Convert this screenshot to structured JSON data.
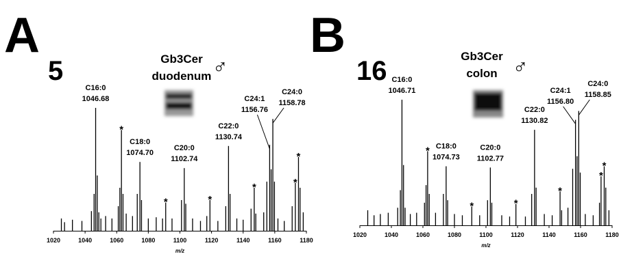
{
  "chart_data": [
    {
      "type": "spectrum",
      "panel": "A",
      "sample": "5",
      "title_lines": [
        "Gb3Cer",
        "duodenum"
      ],
      "symbol": "♂",
      "x_label": "m/z",
      "xlim": [
        1020,
        1180
      ],
      "xticks": [
        1020,
        1040,
        1060,
        1080,
        1100,
        1120,
        1140,
        1160,
        1180
      ],
      "ylim": [
        0,
        100
      ],
      "color": "#000000",
      "x": [
        1025,
        1027,
        1032,
        1038,
        1044,
        1045.7,
        1046.68,
        1047.7,
        1048.7,
        1050,
        1053,
        1057,
        1061,
        1062,
        1063,
        1064,
        1066,
        1070,
        1073,
        1074.7,
        1075.7,
        1080,
        1085,
        1089,
        1091,
        1095,
        1101,
        1102.74,
        1103.7,
        1108,
        1113,
        1117,
        1119,
        1124,
        1129,
        1130.74,
        1131.7,
        1136,
        1140,
        1145,
        1147,
        1148,
        1153,
        1155,
        1156.76,
        1157.7,
        1158.78,
        1159.8,
        1162,
        1166,
        1171,
        1173,
        1175,
        1176,
        1178
      ],
      "values": [
        10,
        7,
        9,
        8,
        16,
        30,
        100,
        45,
        15,
        10,
        12,
        10,
        20,
        35,
        82,
        30,
        14,
        12,
        30,
        56,
        25,
        10,
        11,
        10,
        23,
        10,
        25,
        51,
        22,
        10,
        8,
        12,
        25,
        8,
        20,
        69,
        30,
        10,
        9,
        18,
        35,
        14,
        15,
        40,
        70,
        50,
        91,
        40,
        10,
        8,
        20,
        39,
        60,
        35,
        15
      ],
      "peak_names": [
        null,
        null,
        null,
        null,
        null,
        null,
        "C16:0",
        null,
        null,
        null,
        null,
        null,
        null,
        null,
        null,
        null,
        null,
        null,
        null,
        "C18:0",
        null,
        null,
        null,
        null,
        null,
        null,
        null,
        "C20:0",
        null,
        null,
        null,
        null,
        null,
        null,
        null,
        "C22:0",
        null,
        null,
        null,
        null,
        null,
        null,
        null,
        null,
        "C24:1",
        null,
        "C24:0",
        null,
        null,
        null,
        null,
        null,
        null,
        null,
        null
      ],
      "peak_mz": [
        null,
        null,
        null,
        null,
        null,
        null,
        "1046.68",
        null,
        null,
        null,
        null,
        null,
        null,
        null,
        null,
        null,
        null,
        null,
        null,
        "1074.70",
        null,
        null,
        null,
        null,
        null,
        null,
        null,
        "1102.74",
        null,
        null,
        null,
        null,
        null,
        null,
        null,
        "1130.74",
        null,
        null,
        null,
        null,
        null,
        null,
        null,
        null,
        "1156.76",
        null,
        "1158.78",
        null,
        null,
        null,
        null,
        null,
        null,
        null,
        null
      ],
      "markers": [
        null,
        null,
        null,
        null,
        null,
        null,
        null,
        null,
        null,
        null,
        null,
        null,
        null,
        null,
        "*",
        null,
        null,
        null,
        null,
        null,
        null,
        null,
        null,
        null,
        "*",
        null,
        null,
        null,
        null,
        null,
        null,
        null,
        "*",
        null,
        null,
        null,
        null,
        null,
        null,
        null,
        "*",
        null,
        null,
        null,
        null,
        null,
        null,
        null,
        null,
        null,
        null,
        "*",
        "*",
        null,
        null
      ]
    },
    {
      "type": "spectrum",
      "panel": "B",
      "sample": "16",
      "title_lines": [
        "Gb3Cer",
        "colon"
      ],
      "symbol": "♂",
      "x_label": "m/z",
      "xlim": [
        1020,
        1180
      ],
      "xticks": [
        1020,
        1040,
        1060,
        1080,
        1100,
        1120,
        1140,
        1160,
        1180
      ],
      "ylim": [
        0,
        100
      ],
      "color": "#000000",
      "x": [
        1025,
        1029,
        1033,
        1038,
        1044,
        1045.7,
        1046.71,
        1047.7,
        1048.7,
        1052,
        1056,
        1061,
        1062,
        1063,
        1064,
        1068,
        1073,
        1074.73,
        1075.7,
        1080,
        1085,
        1091,
        1096,
        1101,
        1102.77,
        1103.7,
        1110,
        1115,
        1119,
        1125,
        1129,
        1130.82,
        1131.8,
        1137,
        1142,
        1147,
        1148,
        1152,
        1155,
        1156.8,
        1157.8,
        1158.85,
        1159.8,
        1163,
        1168,
        1172,
        1173,
        1175,
        1176,
        1178
      ],
      "values": [
        12,
        8,
        9,
        10,
        14,
        28,
        100,
        48,
        14,
        9,
        10,
        18,
        32,
        59,
        25,
        10,
        25,
        47,
        20,
        9,
        8,
        15,
        8,
        20,
        46,
        18,
        8,
        7,
        17,
        7,
        25,
        76,
        30,
        9,
        8,
        27,
        12,
        14,
        45,
        84,
        55,
        91,
        42,
        9,
        8,
        18,
        39,
        47,
        30,
        12
      ],
      "peak_names": [
        null,
        null,
        null,
        null,
        null,
        null,
        "C16:0",
        null,
        null,
        null,
        null,
        null,
        null,
        null,
        null,
        null,
        null,
        "C18:0",
        null,
        null,
        null,
        null,
        null,
        null,
        "C20:0",
        null,
        null,
        null,
        null,
        null,
        null,
        "C22:0",
        null,
        null,
        null,
        null,
        null,
        null,
        null,
        "C24:1",
        null,
        "C24:0",
        null,
        null,
        null,
        null,
        null,
        null,
        null,
        null
      ],
      "peak_mz": [
        null,
        null,
        null,
        null,
        null,
        null,
        "1046.71",
        null,
        null,
        null,
        null,
        null,
        null,
        null,
        null,
        null,
        null,
        "1074.73",
        null,
        null,
        null,
        null,
        null,
        null,
        "1102.77",
        null,
        null,
        null,
        null,
        null,
        null,
        "1130.82",
        null,
        null,
        null,
        null,
        null,
        null,
        null,
        "1156.80",
        null,
        "1158.85",
        null,
        null,
        null,
        null,
        null,
        null,
        null,
        null
      ],
      "markers": [
        null,
        null,
        null,
        null,
        null,
        null,
        null,
        null,
        null,
        null,
        null,
        null,
        null,
        "*",
        null,
        null,
        null,
        null,
        null,
        null,
        null,
        "*",
        null,
        null,
        null,
        null,
        null,
        null,
        "*",
        null,
        null,
        null,
        null,
        null,
        null,
        "*",
        null,
        null,
        null,
        null,
        null,
        null,
        null,
        null,
        null,
        null,
        "*",
        "*",
        null,
        null
      ]
    }
  ]
}
